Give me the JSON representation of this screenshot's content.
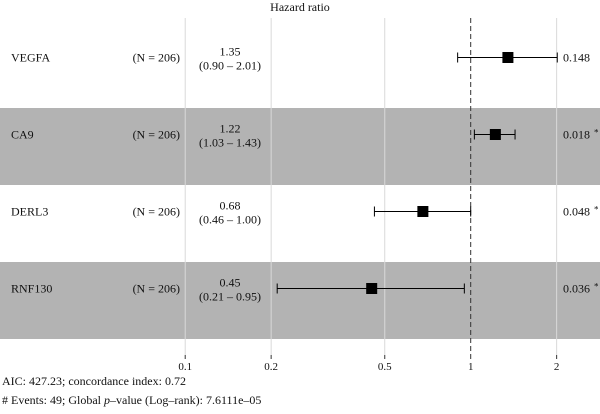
{
  "chart_data": {
    "type": "forest",
    "title": "Hazard ratio",
    "x_scale": "log",
    "x_range": [
      0.09,
      2.5
    ],
    "reference_line": 1,
    "x_ticks": [
      0.1,
      0.2,
      0.5,
      1,
      2
    ],
    "x_tick_labels": [
      "0.1",
      "0.2",
      "0.5",
      "1",
      "2"
    ],
    "rows": [
      {
        "name": "VEGFA",
        "n": "(N = 206)",
        "hr_text": "1.35",
        "ci_text": "(0.90 – 2.01)",
        "hr": 1.35,
        "lo": 0.9,
        "hi": 2.01,
        "p": "0.148",
        "star": "",
        "shaded": false
      },
      {
        "name": "CA9",
        "n": "(N = 206)",
        "hr_text": "1.22",
        "ci_text": "(1.03 – 1.43)",
        "hr": 1.22,
        "lo": 1.03,
        "hi": 1.43,
        "p": "0.018",
        "star": "*",
        "shaded": true
      },
      {
        "name": "DERL3",
        "n": "(N = 206)",
        "hr_text": "0.68",
        "ci_text": "(0.46 – 1.00)",
        "hr": 0.68,
        "lo": 0.46,
        "hi": 1.0,
        "p": "0.048",
        "star": "*",
        "shaded": false
      },
      {
        "name": "RNF130",
        "n": "(N = 206)",
        "hr_text": "0.45",
        "ci_text": "(0.21 – 0.95)",
        "hr": 0.45,
        "lo": 0.21,
        "hi": 0.95,
        "p": "0.036",
        "star": "*",
        "shaded": true
      }
    ],
    "colors": {
      "shade": "#b3b3b3",
      "marker": "#000000",
      "grid": "#d9d9d9",
      "reference": "#333333"
    }
  },
  "footer": {
    "line1": "AIC: 427.23; concordance index: 0.72",
    "line2": "# Events: 49; Global p–value (Log–rank): 7.6111e–05"
  }
}
